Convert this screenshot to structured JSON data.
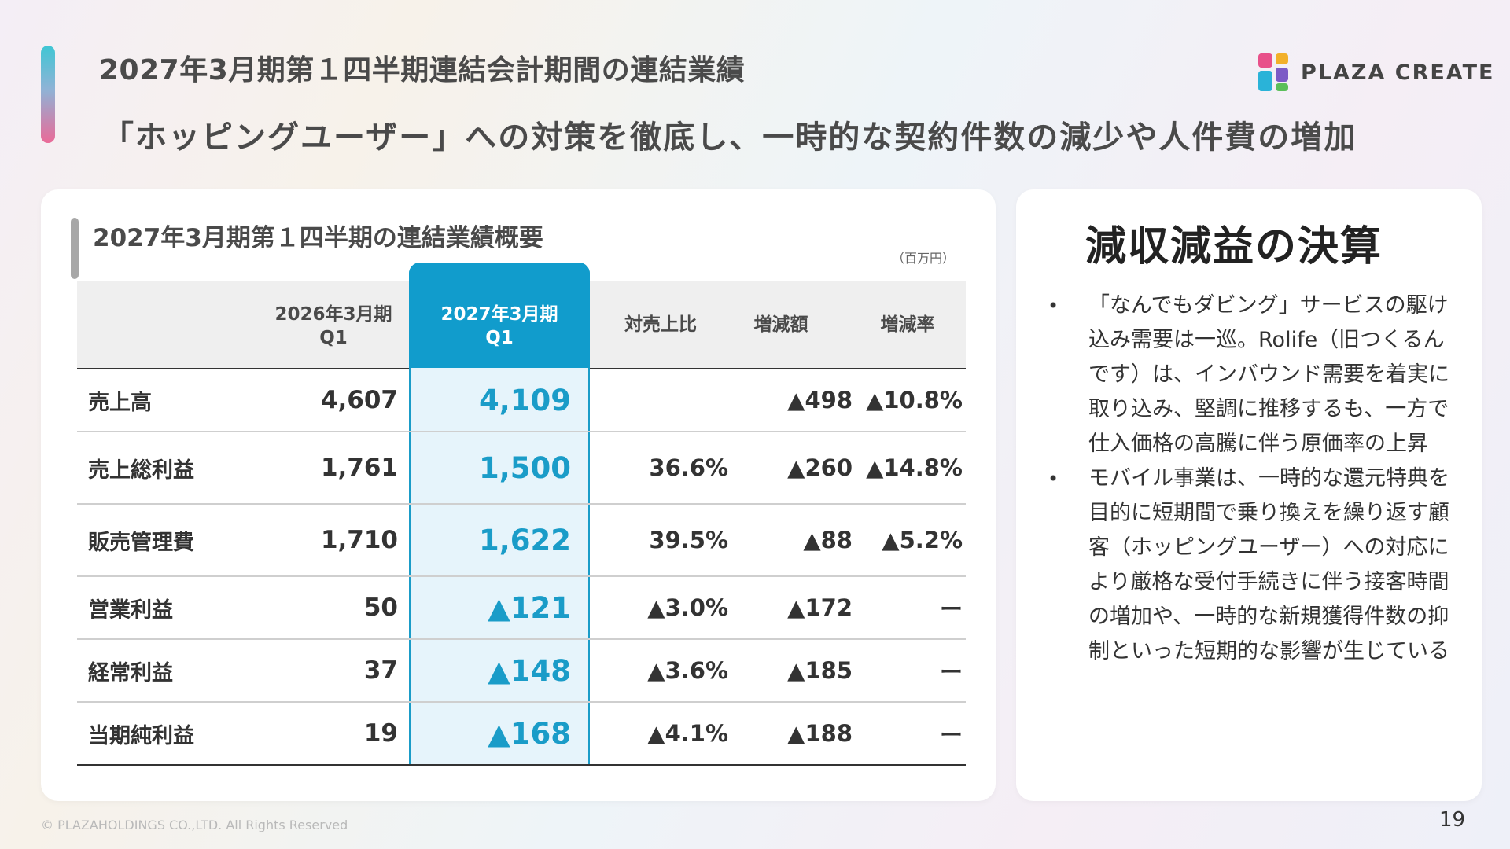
{
  "header": {
    "title": "2027年3月期第１四半期連結会計期間の連結業績",
    "subtitle": "「ホッピングユーザー」への対策を徹底し、一時的な契約件数の減少や人件費の増加",
    "logo_text": "PLAZA CREATE"
  },
  "summary_card": {
    "title": "2027年3月期第１四半期の連結業績概要",
    "unit": "（百万円）",
    "columns": {
      "prev_line1": "2026年3月期",
      "prev_line2": "Q1",
      "curr_line1": "2027年3月期",
      "curr_line2": "Q1",
      "ratio": "対売上比",
      "diff": "増減額",
      "rate": "増減率"
    },
    "rows": [
      {
        "label": "売上高",
        "prev": "4,607",
        "curr": "4,109",
        "ratio": "",
        "diff": "▲498",
        "rate": "▲10.8%"
      },
      {
        "label": "売上総利益",
        "prev": "1,761",
        "curr": "1,500",
        "ratio": "36.6%",
        "diff": "▲260",
        "rate": "▲14.8%"
      },
      {
        "label": "販売管理費",
        "prev": "1,710",
        "curr": "1,622",
        "ratio": "39.5%",
        "diff": "▲88",
        "rate": "▲5.2%"
      },
      {
        "label": "営業利益",
        "prev": "50",
        "curr": "▲121",
        "ratio": "▲3.0%",
        "diff": "▲172",
        "rate": "ー"
      },
      {
        "label": "経常利益",
        "prev": "37",
        "curr": "▲148",
        "ratio": "▲3.6%",
        "diff": "▲185",
        "rate": "ー"
      },
      {
        "label": "当期純利益",
        "prev": "19",
        "curr": "▲168",
        "ratio": "▲4.1%",
        "diff": "▲188",
        "rate": "ー"
      }
    ]
  },
  "result_card": {
    "title": "減収減益の決算",
    "bullets": [
      "「なんでもダビング」サービスの駆け込み需要は一巡。Rolife（旧つくるんです）は、インバウンド需要を着実に取り込み、堅調に推移するも、一方で仕入価格の高騰に伴う原価率の上昇",
      "モバイル事業は、一時的な還元特典を目的に短期間で乗り換えを繰り返す顧客（ホッピングユーザー）への対応により厳格な受付手続きに伴う接客時間の増加や、一時的な新規獲得件数の抑制といった短期的な影響が生じている"
    ]
  },
  "footer": {
    "copyright": "© PLAZAHOLDINGS CO.,LTD. All Rights Reserved",
    "page_number": "19"
  },
  "colors": {
    "accent_blue": "#119ccc",
    "highlight_bg": "#e6f4fb",
    "current_value": "#1a9cc8"
  }
}
